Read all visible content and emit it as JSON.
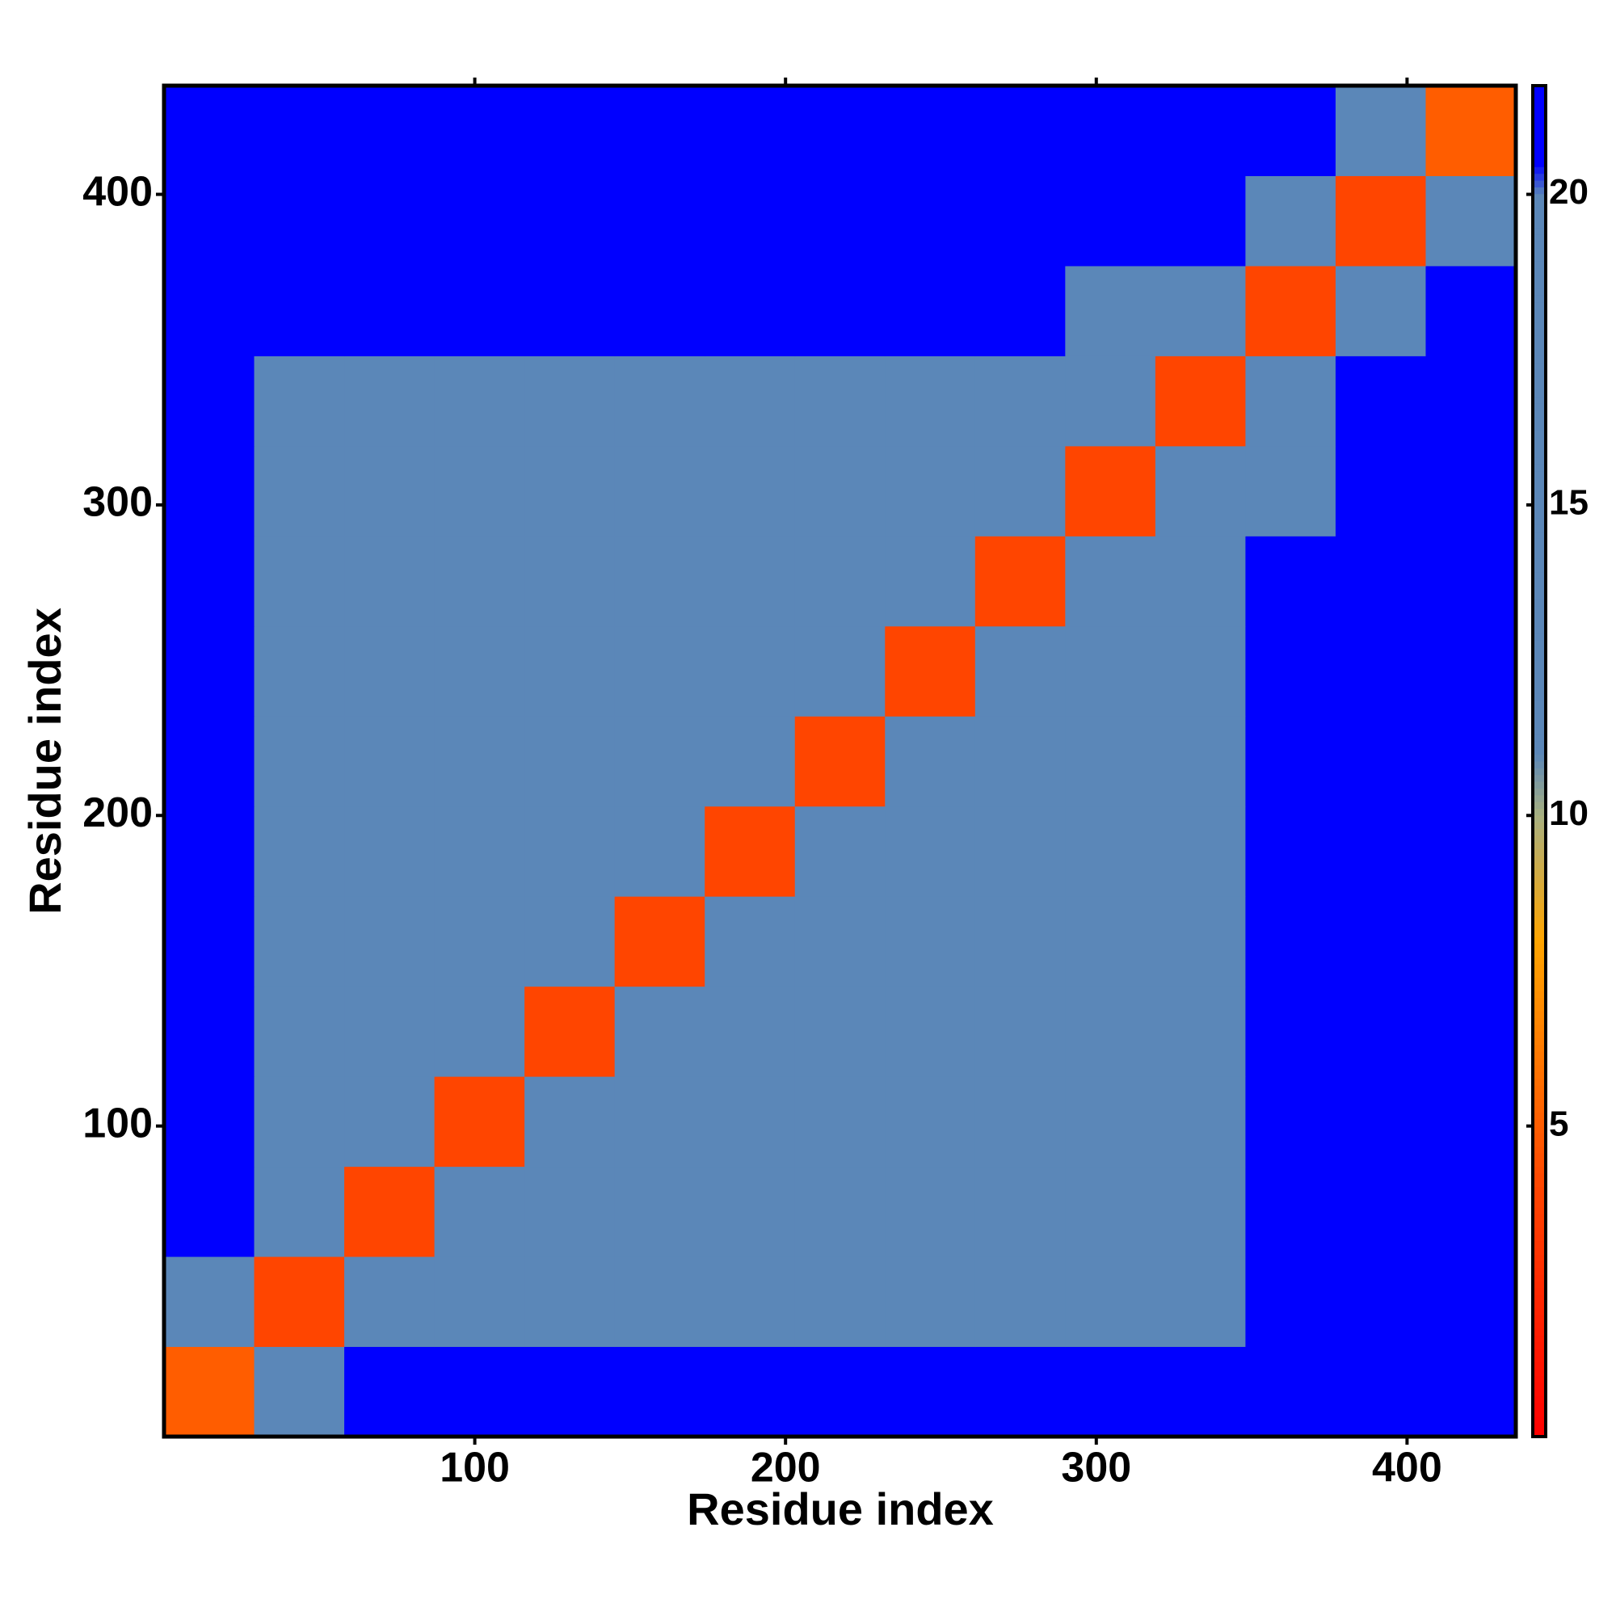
{
  "chart_data": {
    "type": "heatmap",
    "xlabel": "Residue index",
    "ylabel": "Residue index",
    "xlim": [
      0,
      435
    ],
    "ylim": [
      0,
      435
    ],
    "xticks": [
      100,
      200,
      300,
      400
    ],
    "yticks": [
      100,
      200,
      300,
      400
    ],
    "bins": [
      0,
      29,
      58,
      87,
      116,
      145,
      174,
      203,
      232,
      261,
      290,
      319,
      348,
      377,
      406,
      435
    ],
    "z": [
      [
        5,
        14,
        21,
        21,
        21,
        21,
        21,
        21,
        21,
        21,
        21,
        21,
        21,
        21,
        21
      ],
      [
        14,
        4,
        12,
        16,
        17,
        16,
        17,
        16,
        16,
        17,
        16,
        18,
        21,
        21,
        21
      ],
      [
        21,
        12,
        4,
        12,
        15,
        16,
        16,
        17,
        16,
        15,
        16,
        17,
        21,
        21,
        21
      ],
      [
        21,
        16,
        12,
        4,
        12,
        16,
        17,
        16,
        17,
        16,
        16,
        17,
        21,
        21,
        21
      ],
      [
        21,
        17,
        15,
        12,
        4,
        12,
        15,
        16,
        16,
        15,
        16,
        17,
        21,
        21,
        21
      ],
      [
        21,
        16,
        16,
        16,
        12,
        4,
        12,
        15,
        16,
        16,
        15,
        16,
        21,
        21,
        21
      ],
      [
        21,
        17,
        16,
        17,
        15,
        12,
        4,
        12,
        14,
        15,
        16,
        16,
        21,
        21,
        21
      ],
      [
        21,
        16,
        17,
        16,
        16,
        15,
        12,
        4,
        12,
        14,
        16,
        16,
        21,
        21,
        21
      ],
      [
        21,
        16,
        16,
        17,
        16,
        16,
        14,
        12,
        4,
        12,
        14,
        15,
        21,
        21,
        21
      ],
      [
        21,
        17,
        15,
        16,
        15,
        16,
        15,
        14,
        12,
        4,
        12,
        14,
        21,
        21,
        21
      ],
      [
        21,
        16,
        16,
        16,
        16,
        15,
        16,
        16,
        14,
        12,
        4,
        12,
        18,
        21,
        21
      ],
      [
        21,
        18,
        17,
        17,
        17,
        16,
        16,
        16,
        15,
        14,
        12,
        4,
        14,
        21,
        21
      ],
      [
        21,
        21,
        21,
        21,
        21,
        21,
        21,
        21,
        21,
        21,
        18,
        14,
        4,
        18,
        21
      ],
      [
        21,
        21,
        21,
        21,
        21,
        21,
        21,
        21,
        21,
        21,
        21,
        21,
        18,
        4,
        18
      ],
      [
        21,
        21,
        21,
        21,
        21,
        21,
        21,
        21,
        21,
        21,
        21,
        21,
        21,
        18,
        5
      ]
    ],
    "clim": [
      0,
      21.75
    ],
    "cticks": [
      5,
      10,
      15,
      20
    ],
    "colorscale": {
      "values": [
        0,
        4,
        8,
        10,
        11,
        20,
        20.5
      ],
      "colors": [
        "#ff0000",
        "#ff4500",
        "#ffa500",
        "#a8b080",
        "#5b87b8",
        "#5b87b8",
        "#0000ff"
      ]
    }
  }
}
